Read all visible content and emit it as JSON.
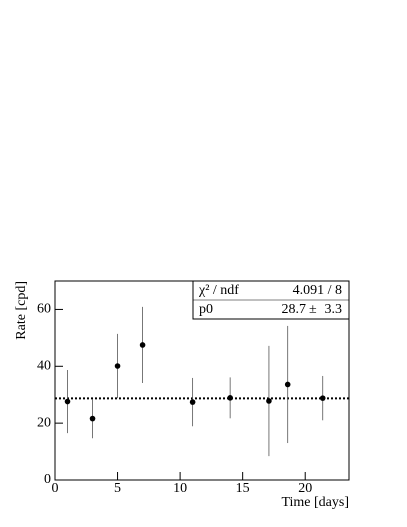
{
  "chart_data": {
    "type": "scatter",
    "xlabel": "Time [days]",
    "ylabel": "Rate [cpd]",
    "x": [
      1.0,
      3.0,
      5.0,
      7.0,
      11.0,
      14.0,
      17.1,
      18.6,
      21.4
    ],
    "series": [
      {
        "name": "rate",
        "color": "#000000",
        "values": [
          27.6,
          21.6,
          40.1,
          47.5,
          27.4,
          28.9,
          27.8,
          33.6,
          28.8
        ],
        "errors": [
          11.1,
          6.9,
          11.3,
          13.4,
          8.5,
          7.2,
          19.4,
          20.6,
          7.8
        ]
      }
    ],
    "xlim": [
      0,
      23.5
    ],
    "ylim": [
      0,
      70
    ],
    "xticks": [
      0,
      5,
      10,
      15,
      20
    ],
    "yticks": [
      0,
      20,
      40,
      60
    ],
    "stats": {
      "chi2_label": "χ² / ndf",
      "chi2_value": "4.091 / 8",
      "p0_label": "p0",
      "p0": 28.7,
      "p0_pm": "±",
      "p0_error": 3.3
    }
  }
}
